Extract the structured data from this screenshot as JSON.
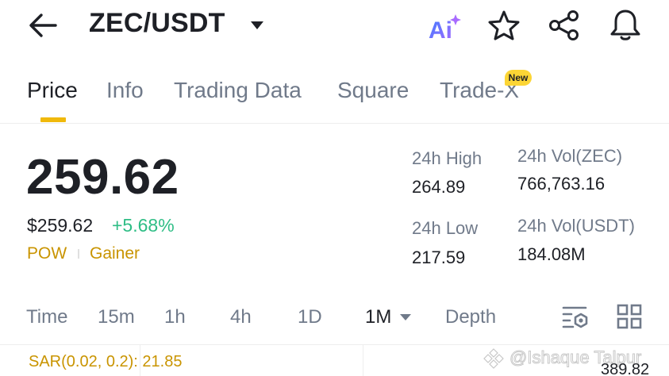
{
  "header": {
    "pair": "ZEC/USDT",
    "icons": [
      "back-arrow-icon",
      "caret-down-icon",
      "ai-icon",
      "star-icon",
      "share-icon",
      "bell-icon"
    ],
    "ai_label": "Ai"
  },
  "tabs": {
    "items": [
      {
        "label": "Price",
        "active": true
      },
      {
        "label": "Info",
        "active": false
      },
      {
        "label": "Trading Data",
        "active": false
      },
      {
        "label": "Square",
        "active": false
      },
      {
        "label": "Trade-X",
        "active": false
      }
    ],
    "new_badge": "New"
  },
  "price": {
    "last": "259.62",
    "usd": "$259.62",
    "change": "+5.68%",
    "tags": [
      "POW",
      "Gainer"
    ]
  },
  "stats": {
    "high_label": "24h High",
    "high_value": "264.89",
    "low_label": "24h Low",
    "low_value": "217.59",
    "vol_base_label": "24h Vol(ZEC)",
    "vol_base_value": "766,763.16",
    "vol_quote_label": "24h Vol(USDT)",
    "vol_quote_value": "184.08M"
  },
  "intervals": {
    "items": [
      {
        "label": "Time",
        "active": false
      },
      {
        "label": "15m",
        "active": false
      },
      {
        "label": "1h",
        "active": false
      },
      {
        "label": "4h",
        "active": false
      },
      {
        "label": "1D",
        "active": false
      },
      {
        "label": "1M",
        "active": true
      },
      {
        "label": "Depth",
        "active": false
      }
    ]
  },
  "chart": {
    "indicator": "SAR(0.02, 0.2): 21.85",
    "price_axis_top": "389.82"
  },
  "watermark": {
    "text": "@Ishaque Talpur"
  },
  "colors": {
    "accent": "#f0b90b",
    "up": "#2ebd85",
    "tag": "#c99400",
    "ai_gradient_start": "#3d7bff",
    "ai_gradient_end": "#a86bff"
  }
}
